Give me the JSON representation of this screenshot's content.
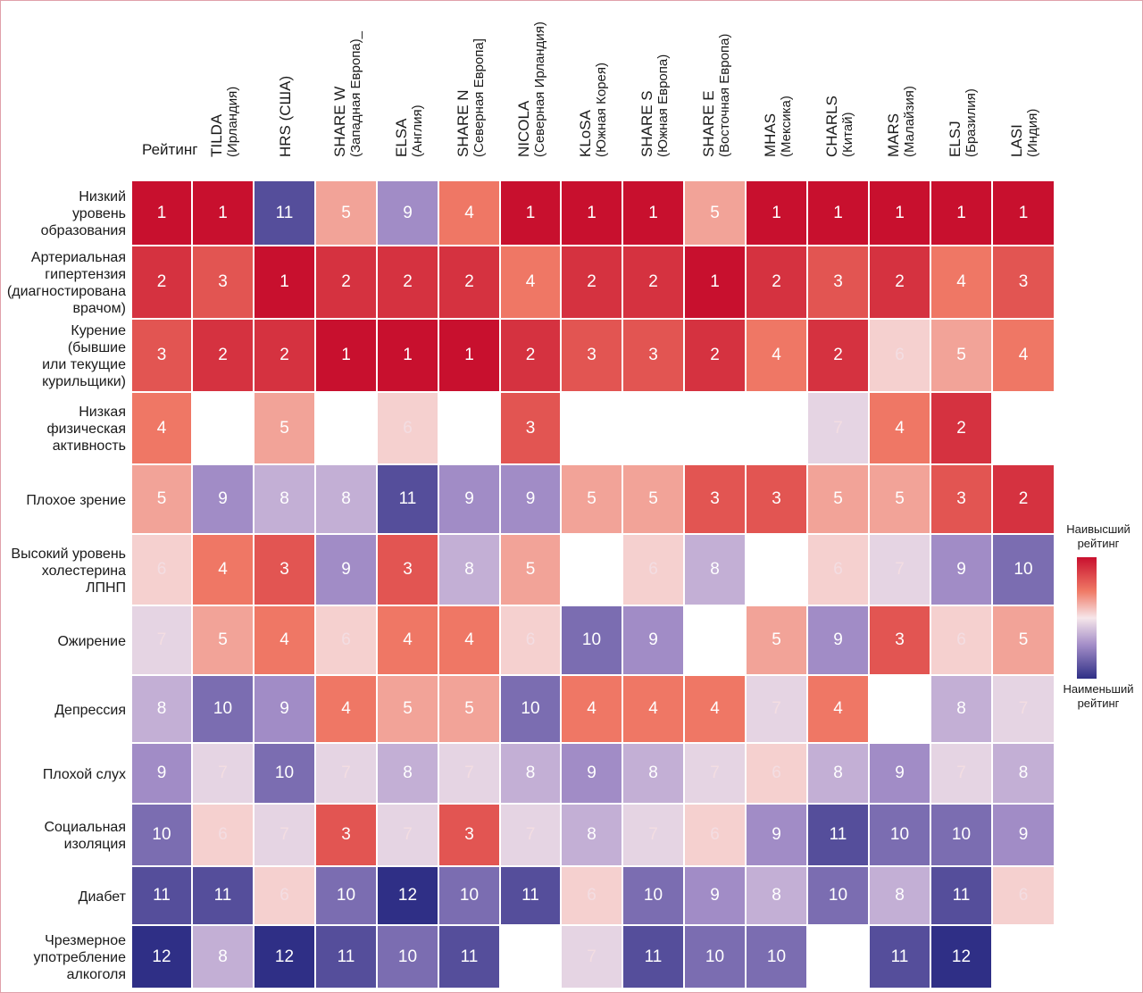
{
  "chart_data": {
    "type": "heatmap",
    "title": "",
    "rank_column_label": "Рейтинг",
    "columns": [
      {
        "name": "TILDA",
        "sub": "(Ирландия)"
      },
      {
        "name": "HRS (США)",
        "sub": ""
      },
      {
        "name": "SHARE W",
        "sub": "(Западная Европа)_"
      },
      {
        "name": "ELSA",
        "sub": "(Англия)"
      },
      {
        "name": "SHARE N",
        "sub": "(Северная Европа]"
      },
      {
        "name": "NICOLA",
        "sub": "(Северная Ирландия)"
      },
      {
        "name": "KLoSA",
        "sub": "(Южная Корея)"
      },
      {
        "name": "SHARE S",
        "sub": "(Южная Европа)"
      },
      {
        "name": "SHARE E",
        "sub": "(Восточная Европа)"
      },
      {
        "name": "MHAS",
        "sub": "(Мексика)"
      },
      {
        "name": "CHARLS",
        "sub": "(Китай)"
      },
      {
        "name": "MARS",
        "sub": "(Малайзия)"
      },
      {
        "name": "ELSJ",
        "sub": "(Бразилия)"
      },
      {
        "name": "LASI",
        "sub": "(Индия)"
      }
    ],
    "rows": [
      {
        "label": "Низкий\nуровень\nобразования",
        "rank": 1,
        "values": [
          1,
          11,
          5,
          9,
          4,
          1,
          1,
          1,
          5,
          1,
          1,
          1,
          1,
          1
        ]
      },
      {
        "label": "Артериальная\nгипертензия\n(диагностирована\nврачом)",
        "rank": 2,
        "values": [
          3,
          1,
          2,
          2,
          2,
          4,
          2,
          2,
          1,
          2,
          3,
          2,
          4,
          3
        ]
      },
      {
        "label": "Курение\n(бывшие\nили текущие\nкурильщики)",
        "rank": 3,
        "values": [
          2,
          2,
          1,
          1,
          1,
          2,
          3,
          3,
          2,
          4,
          2,
          6,
          5,
          4
        ]
      },
      {
        "label": "Низкая\nфизическая\nактивность",
        "rank": 4,
        "values": [
          null,
          5,
          null,
          6,
          null,
          3,
          null,
          null,
          null,
          null,
          7,
          4,
          2,
          null
        ]
      },
      {
        "label": "Плохое зрение",
        "rank": 5,
        "values": [
          9,
          8,
          8,
          11,
          9,
          9,
          5,
          5,
          3,
          3,
          5,
          5,
          3,
          2
        ]
      },
      {
        "label": "Высокий уровень\nхолестерина\nЛПНП",
        "rank": 6,
        "values": [
          4,
          3,
          9,
          3,
          8,
          5,
          null,
          6,
          8,
          null,
          6,
          7,
          9,
          10
        ]
      },
      {
        "label": "Ожирение",
        "rank": 7,
        "values": [
          5,
          4,
          6,
          4,
          4,
          6,
          10,
          9,
          null,
          5,
          9,
          3,
          6,
          5
        ]
      },
      {
        "label": "Депрессия",
        "rank": 8,
        "values": [
          10,
          9,
          4,
          5,
          5,
          10,
          4,
          4,
          4,
          7,
          4,
          null,
          8,
          7
        ]
      },
      {
        "label": "Плохой слух",
        "rank": 9,
        "values": [
          7,
          10,
          7,
          8,
          7,
          8,
          9,
          8,
          7,
          6,
          8,
          9,
          7,
          8
        ]
      },
      {
        "label": "Социальная\nизоляция",
        "rank": 10,
        "values": [
          6,
          7,
          3,
          7,
          3,
          7,
          8,
          7,
          6,
          9,
          11,
          10,
          10,
          9
        ]
      },
      {
        "label": "Диабет",
        "rank": 11,
        "values": [
          11,
          6,
          10,
          12,
          10,
          11,
          6,
          10,
          9,
          8,
          10,
          8,
          11,
          6
        ]
      },
      {
        "label": "Чрезмерное\nупотребление\nалкоголя",
        "rank": 12,
        "values": [
          8,
          12,
          11,
          10,
          11,
          null,
          7,
          11,
          10,
          10,
          null,
          11,
          12,
          null
        ]
      }
    ],
    "color_scale": {
      "high": "#c8102e",
      "mid_high": "#f07a66",
      "mid": "#f6e6ea",
      "mid_low": "#a48ec8",
      "low": "#2f2f86",
      "empty": "#ffffff",
      "light_text": "#ffffff",
      "faded_text": "#f3dde2"
    },
    "legend": {
      "top_label": "Наивысший\nрейтинг",
      "bottom_label": "Наименьший\nрейтинг"
    }
  }
}
